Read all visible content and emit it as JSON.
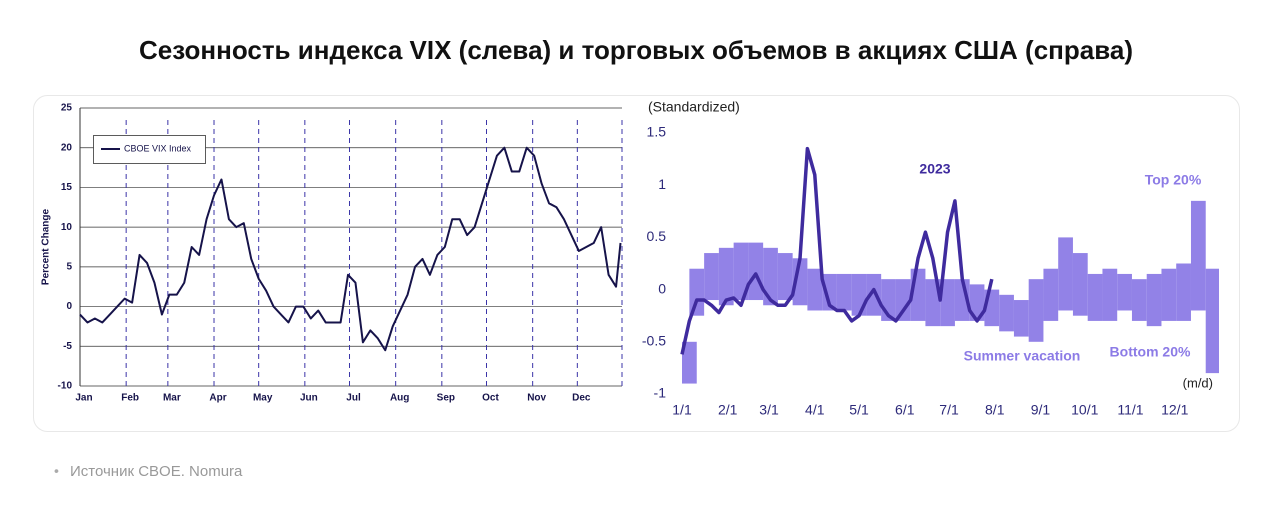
{
  "header": {
    "title": "Сезонность индекса VIX (слева) и торговых объемов в акциях США (справа)"
  },
  "footer": {
    "source": "Источник CBOE. Nomura"
  },
  "chart_data": [
    {
      "type": "line",
      "y_label": "Percent Change",
      "legend": "upper left",
      "grid": true,
      "xlim": [
        1,
        365
      ],
      "ylim": [
        -10,
        25
      ],
      "yticks": [
        -10,
        -5,
        0,
        5,
        10,
        15,
        20,
        25
      ],
      "xticks": [
        {
          "value": 1,
          "label": "Jan"
        },
        {
          "value": 32,
          "label": "Feb"
        },
        {
          "value": 60,
          "label": "Mar"
        },
        {
          "value": 91,
          "label": "Apr"
        },
        {
          "value": 121,
          "label": "May"
        },
        {
          "value": 152,
          "label": "Jun"
        },
        {
          "value": 182,
          "label": "Jul"
        },
        {
          "value": 213,
          "label": "Aug"
        },
        {
          "value": 244,
          "label": "Sep"
        },
        {
          "value": 274,
          "label": "Oct"
        },
        {
          "value": 305,
          "label": "Nov"
        },
        {
          "value": 335,
          "label": "Dec"
        },
        {
          "value": 365,
          "label": ""
        }
      ],
      "series": [
        {
          "name": "CBOE VIX Index",
          "color": "#16134a",
          "x": [
            1,
            6,
            11,
            16,
            21,
            26,
            31,
            36,
            41,
            46,
            51,
            56,
            61,
            66,
            71,
            76,
            81,
            86,
            91,
            96,
            101,
            106,
            111,
            116,
            121,
            126,
            131,
            136,
            141,
            146,
            151,
            156,
            161,
            166,
            171,
            176,
            181,
            186,
            191,
            196,
            201,
            206,
            211,
            216,
            221,
            226,
            231,
            236,
            241,
            246,
            251,
            256,
            261,
            266,
            271,
            276,
            281,
            286,
            291,
            296,
            301,
            306,
            311,
            316,
            321,
            326,
            331,
            336,
            341,
            346,
            351,
            356,
            361,
            364
          ],
          "values": [
            -1,
            -2,
            -1.5,
            -2,
            -1,
            0,
            1,
            0.5,
            6.5,
            5.5,
            3,
            -1,
            1.5,
            1.5,
            3,
            7.5,
            6.5,
            11,
            14,
            16,
            11,
            10,
            10.5,
            6,
            3.5,
            2,
            0,
            -1,
            -2,
            0,
            0,
            -1.5,
            -0.5,
            -2,
            -2,
            -2,
            4,
            3,
            -4.5,
            -3,
            -4,
            -5.5,
            -2.5,
            -0.5,
            1.5,
            5,
            6,
            4,
            6.5,
            7.5,
            11,
            11,
            9,
            10,
            13,
            16,
            19,
            20,
            17,
            17,
            20,
            19,
            15.5,
            13,
            12.5,
            11,
            9,
            7,
            7.5,
            8,
            10,
            4,
            2.5,
            8
          ]
        }
      ]
    },
    {
      "type": "band",
      "y_label": "(Standardized)",
      "x_label": "(m/d)",
      "xlim": [
        1,
        365
      ],
      "ylim": [
        -1,
        1.5
      ],
      "yticks": [
        -1,
        -0.5,
        0,
        0.5,
        1,
        1.5
      ],
      "xticks": [
        {
          "value": 1,
          "label": "1/1"
        },
        {
          "value": 32,
          "label": "2/1"
        },
        {
          "value": 60,
          "label": "3/1"
        },
        {
          "value": 91,
          "label": "4/1"
        },
        {
          "value": 121,
          "label": "5/1"
        },
        {
          "value": 152,
          "label": "6/1"
        },
        {
          "value": 182,
          "label": "7/1"
        },
        {
          "value": 213,
          "label": "8/1"
        },
        {
          "value": 244,
          "label": "9/1"
        },
        {
          "value": 274,
          "label": "10/1"
        },
        {
          "value": 305,
          "label": "11/1"
        },
        {
          "value": 335,
          "label": "12/1"
        }
      ],
      "annotations": [
        {
          "text": "Summer vacation",
          "color": "#8c7be6"
        }
      ],
      "series": [
        {
          "name": "Top 20%",
          "color": "#8c7be6",
          "x": [
            1,
            11,
            21,
            31,
            41,
            51,
            61,
            71,
            81,
            91,
            101,
            111,
            121,
            131,
            141,
            151,
            161,
            171,
            181,
            191,
            201,
            211,
            221,
            231,
            241,
            251,
            261,
            271,
            281,
            291,
            301,
            311,
            321,
            331,
            341,
            351,
            361
          ],
          "values": [
            -0.5,
            0.2,
            0.35,
            0.4,
            0.45,
            0.45,
            0.4,
            0.35,
            0.3,
            0.2,
            0.15,
            0.15,
            0.15,
            0.15,
            0.1,
            0.1,
            0.2,
            0.1,
            0.1,
            0.1,
            0.05,
            0,
            -0.05,
            -0.1,
            0.1,
            0.2,
            0.5,
            0.35,
            0.15,
            0.2,
            0.15,
            0.1,
            0.15,
            0.2,
            0.25,
            0.85,
            0.2
          ]
        },
        {
          "name": "Bottom 20%",
          "color": "#8c7be6",
          "x": [
            1,
            11,
            21,
            31,
            41,
            51,
            61,
            71,
            81,
            91,
            101,
            111,
            121,
            131,
            141,
            151,
            161,
            171,
            181,
            191,
            201,
            211,
            221,
            231,
            241,
            251,
            261,
            271,
            281,
            291,
            301,
            311,
            321,
            331,
            341,
            351,
            361
          ],
          "values": [
            -0.9,
            -0.25,
            -0.1,
            -0.15,
            -0.1,
            -0.1,
            -0.15,
            -0.1,
            -0.15,
            -0.2,
            -0.2,
            -0.2,
            -0.25,
            -0.25,
            -0.3,
            -0.3,
            -0.3,
            -0.35,
            -0.35,
            -0.3,
            -0.3,
            -0.35,
            -0.4,
            -0.45,
            -0.5,
            -0.3,
            -0.2,
            -0.25,
            -0.3,
            -0.3,
            -0.2,
            -0.3,
            -0.35,
            -0.3,
            -0.3,
            -0.2,
            -0.8
          ]
        },
        {
          "name": "2023",
          "color": "#3f2b9e",
          "x": [
            1,
            6,
            11,
            16,
            21,
            26,
            31,
            36,
            41,
            46,
            51,
            56,
            61,
            66,
            71,
            76,
            81,
            86,
            91,
            96,
            101,
            106,
            111,
            116,
            121,
            126,
            131,
            136,
            141,
            146,
            151,
            156,
            161,
            166,
            171,
            176,
            181,
            186,
            191,
            196,
            201,
            206,
            211
          ],
          "values": [
            -0.62,
            -0.3,
            -0.1,
            -0.1,
            -0.15,
            -0.22,
            -0.1,
            -0.08,
            -0.15,
            0.05,
            0.15,
            0,
            -0.1,
            -0.15,
            -0.15,
            -0.05,
            0.3,
            1.35,
            1.1,
            0.1,
            -0.15,
            -0.2,
            -0.2,
            -0.3,
            -0.25,
            -0.1,
            0,
            -0.15,
            -0.25,
            -0.3,
            -0.2,
            -0.1,
            0.3,
            0.55,
            0.3,
            -0.1,
            0.55,
            0.85,
            0.1,
            -0.2,
            -0.3,
            -0.2,
            0.1
          ]
        }
      ]
    }
  ]
}
